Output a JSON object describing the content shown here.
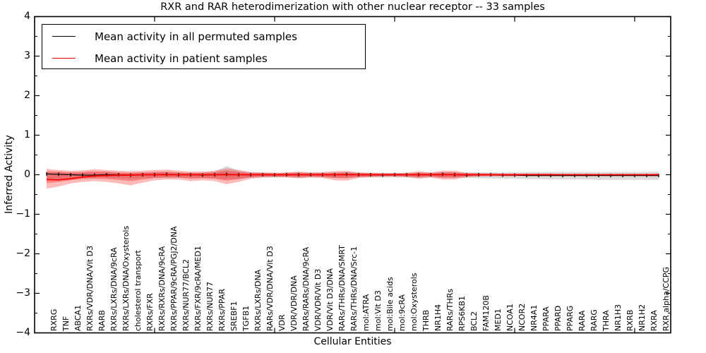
{
  "chart_data": {
    "type": "line",
    "title": "RXR and RAR heterodimerization with other nuclear receptor -- 33 samples",
    "xlabel": "Cellular Entities",
    "ylabel": "Inferred Activity",
    "ylim": [
      -4,
      4
    ],
    "yticks": [
      4,
      3,
      2,
      1,
      0,
      -1,
      -2,
      -3,
      -4
    ],
    "ytick_labels": [
      "4",
      "3",
      "2",
      "1",
      "0",
      "−1",
      "−2",
      "−3",
      "−4"
    ],
    "y_minor_ticks": [
      3.5,
      2.5,
      1.5,
      0.5,
      -0.5,
      -1.5,
      -2.5,
      -3.5
    ],
    "x_major_ticks": [
      10,
      20,
      30,
      40,
      50
    ],
    "grid": false,
    "legend_position": "upper left",
    "categories": [
      "RXRG",
      "TNF",
      "ABCA1",
      "RXRs/VDR/DNA/Vit D3",
      "RARB",
      "RXRs/LXRs/DNA/9cRA",
      "RXRs/LXRs/DNA/Oxysterols",
      "cholesterol transport",
      "RXRs/FXR",
      "RXRs/RXRs/DNA/9cRA",
      "RXRs/PPAR/9cRA/PGJ2/DNA",
      "RXRs/NUR77/BCL2",
      "RXRs/FXR/9cRA/MED1",
      "RXRs/NUR77",
      "RXRs/PPAR",
      "SREBF1",
      "TGFB1",
      "RXRs/LXRs/DNA",
      "RARs/VDR/DNA/Vit D3",
      "VDR",
      "VDR/VDR/DNA",
      "RARs/RARs/DNA/9cRA",
      "VDR/VDR/Vit D3",
      "VDR/Vit D3/DNA",
      "RARs/THRs/DNA/SMRT",
      "RARs/THRs/DNA/Src-1",
      "mol:ATRA",
      "mol:Vit D3",
      "mol:Bile acids",
      "mol:9cRA",
      "mol:Oxysterols",
      "THRB",
      "NR1H4",
      "RARs/THRs",
      "RPS6KB1",
      "BCL2",
      "FAM120B",
      "MED1",
      "NCOA1",
      "NCOR2",
      "NR4A1",
      "PPARA",
      "PPARD",
      "PPARG",
      "RARA",
      "RARG",
      "THRA",
      "NR1H3",
      "RXRB",
      "NR1H2",
      "RXRA",
      "RXR alpha/CCPG"
    ],
    "series": [
      {
        "name": "Mean activity in all permuted samples",
        "color": "#000000",
        "marker": "|",
        "values": [
          0.02,
          0.01,
          0,
          -0.01,
          -0.01,
          0,
          0,
          -0.01,
          0,
          0,
          0.01,
          0,
          0,
          -0.01,
          0,
          0.01,
          0,
          0,
          0,
          0,
          0,
          0,
          0,
          0,
          0,
          0.01,
          0,
          0,
          -0.01,
          0,
          0,
          0,
          0,
          0.01,
          0,
          -0.01,
          0,
          0,
          -0.01,
          -0.01,
          -0.02,
          -0.02,
          -0.02,
          -0.02,
          -0.02,
          -0.02,
          -0.02,
          -0.02,
          -0.02,
          -0.02,
          -0.02,
          -0.02
        ]
      },
      {
        "name": "Mean activity in patient samples",
        "color": "#ff0000",
        "marker": "none",
        "values": [
          -0.12,
          -0.13,
          -0.1,
          -0.06,
          -0.03,
          -0.02,
          -0.01,
          -0.01,
          0,
          0,
          0,
          0,
          0,
          0,
          0,
          0,
          0,
          0,
          0,
          0,
          0,
          0,
          0,
          0,
          0,
          0,
          0,
          0,
          0,
          0,
          0,
          0,
          0,
          0,
          0,
          0,
          0,
          0,
          0,
          0,
          0,
          0,
          0,
          0,
          0,
          0,
          0,
          0,
          0,
          0,
          0,
          0
        ]
      }
    ],
    "bands": [
      {
        "name": "permuted-range",
        "color": "#999999",
        "opacity": 0.35,
        "upper": [
          0.06,
          0.06,
          0.05,
          0.05,
          0.06,
          0.06,
          0.05,
          0.05,
          0.05,
          0.06,
          0.06,
          0.05,
          0.05,
          0.05,
          0.08,
          0.22,
          0.1,
          0.06,
          0.05,
          0.05,
          0.05,
          0.06,
          0.05,
          0.05,
          0.06,
          0.06,
          0.05,
          0.05,
          0.05,
          0.05,
          0.05,
          0.06,
          0.05,
          0.06,
          0.06,
          0.06,
          0.06,
          0.06,
          0.06,
          0.06,
          0.07,
          0.07,
          0.07,
          0.07,
          0.07,
          0.07,
          0.07,
          0.07,
          0.07,
          0.07,
          0.07,
          0.08
        ],
        "lower": [
          -0.1,
          -0.1,
          -0.09,
          -0.08,
          -0.08,
          -0.08,
          -0.09,
          -0.1,
          -0.09,
          -0.08,
          -0.08,
          -0.08,
          -0.08,
          -0.08,
          -0.09,
          -0.12,
          -0.1,
          -0.08,
          -0.07,
          -0.07,
          -0.07,
          -0.08,
          -0.07,
          -0.07,
          -0.08,
          -0.08,
          -0.07,
          -0.07,
          -0.07,
          -0.07,
          -0.07,
          -0.08,
          -0.07,
          -0.08,
          -0.08,
          -0.08,
          -0.09,
          -0.09,
          -0.1,
          -0.1,
          -0.11,
          -0.11,
          -0.12,
          -0.12,
          -0.12,
          -0.12,
          -0.13,
          -0.13,
          -0.13,
          -0.13,
          -0.13,
          -0.13
        ]
      },
      {
        "name": "patient-range-outer",
        "color": "#ff0000",
        "opacity": 0.27,
        "upper": [
          0.15,
          0.12,
          0.1,
          0.11,
          0.14,
          0.12,
          0.1,
          0.09,
          0.1,
          0.12,
          0.13,
          0.1,
          0.08,
          0.08,
          0.1,
          0.16,
          0.12,
          0.07,
          0.06,
          0.05,
          0.06,
          0.08,
          0.06,
          0.07,
          0.09,
          0.1,
          0.06,
          0.05,
          0.04,
          0.04,
          0.05,
          0.09,
          0.06,
          0.1,
          0.1,
          0.05,
          0.04,
          0.04,
          0.03,
          0.03,
          0.03,
          0.03,
          0.03,
          0.02,
          0.02,
          0.02,
          0.02,
          0.02,
          0.02,
          0.02,
          0.02,
          0.03
        ],
        "lower": [
          -0.35,
          -0.3,
          -0.22,
          -0.18,
          -0.16,
          -0.18,
          -0.22,
          -0.27,
          -0.2,
          -0.14,
          -0.12,
          -0.12,
          -0.16,
          -0.14,
          -0.16,
          -0.24,
          -0.18,
          -0.1,
          -0.07,
          -0.06,
          -0.07,
          -0.09,
          -0.07,
          -0.08,
          -0.14,
          -0.15,
          -0.08,
          -0.06,
          -0.05,
          -0.05,
          -0.06,
          -0.1,
          -0.07,
          -0.12,
          -0.12,
          -0.06,
          -0.05,
          -0.04,
          -0.04,
          -0.04,
          -0.03,
          -0.03,
          -0.03,
          -0.03,
          -0.03,
          -0.03,
          -0.03,
          -0.03,
          -0.03,
          -0.03,
          -0.03,
          -0.04
        ],
        "legend": "Mean activity in patient samples"
      },
      {
        "name": "patient-range-inner",
        "color": "#ff0000",
        "opacity": 0.3,
        "upper": [
          0.09,
          0.08,
          0.06,
          0.07,
          0.09,
          0.08,
          0.06,
          0.05,
          0.06,
          0.07,
          0.08,
          0.06,
          0.05,
          0.05,
          0.06,
          0.1,
          0.07,
          0.04,
          0.04,
          0.03,
          0.04,
          0.05,
          0.04,
          0.04,
          0.05,
          0.06,
          0.04,
          0.03,
          0.03,
          0.03,
          0.03,
          0.05,
          0.04,
          0.06,
          0.06,
          0.03,
          0.03,
          0.02,
          0.02,
          0.02,
          0.02,
          0.02,
          0.02,
          0.01,
          0.01,
          0.01,
          0.01,
          0.01,
          0.01,
          0.01,
          0.01,
          0.02
        ],
        "lower": [
          -0.21,
          -0.18,
          -0.14,
          -0.11,
          -0.1,
          -0.11,
          -0.13,
          -0.16,
          -0.12,
          -0.08,
          -0.07,
          -0.07,
          -0.1,
          -0.09,
          -0.1,
          -0.15,
          -0.11,
          -0.06,
          -0.04,
          -0.04,
          -0.04,
          -0.06,
          -0.04,
          -0.05,
          -0.08,
          -0.09,
          -0.05,
          -0.04,
          -0.03,
          -0.03,
          -0.04,
          -0.06,
          -0.04,
          -0.07,
          -0.07,
          -0.04,
          -0.03,
          -0.03,
          -0.03,
          -0.03,
          -0.02,
          -0.02,
          -0.02,
          -0.02,
          -0.02,
          -0.02,
          -0.02,
          -0.02,
          -0.02,
          -0.02,
          -0.02,
          -0.03
        ]
      }
    ]
  }
}
